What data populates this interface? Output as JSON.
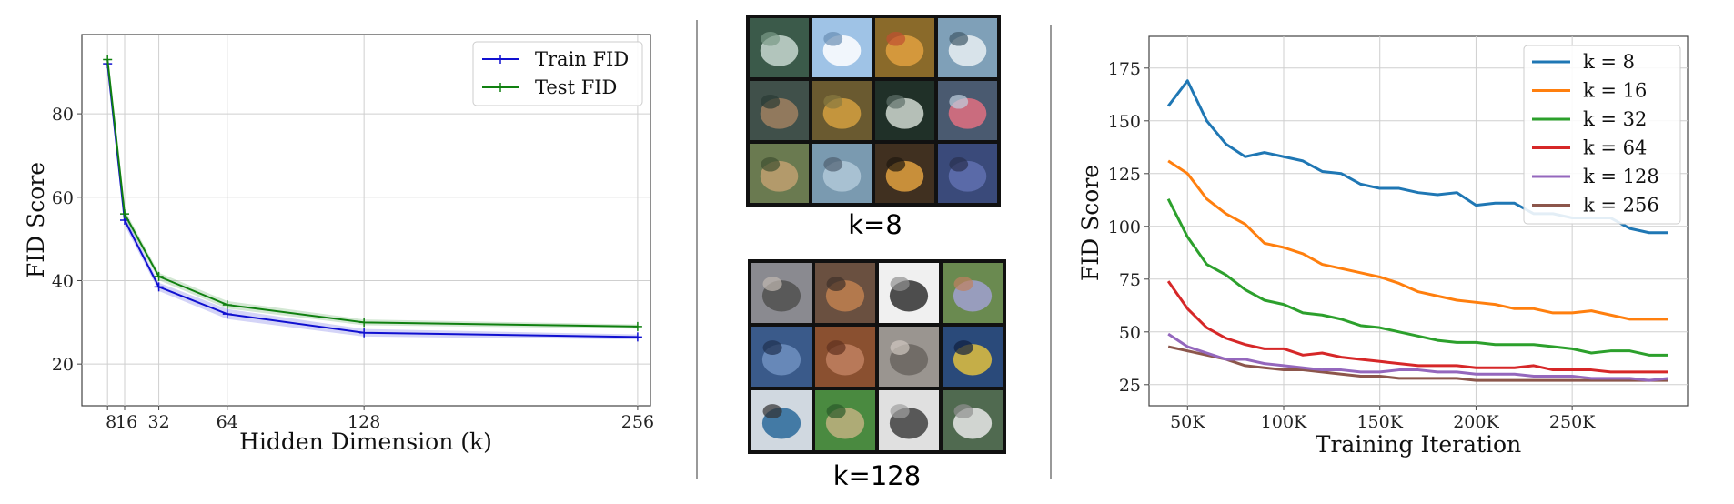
{
  "chart_data": [
    {
      "type": "line",
      "title": "",
      "xlabel": "Hidden Dimension (k)",
      "ylabel": "FID Score",
      "x": [
        8,
        16,
        32,
        64,
        128,
        256
      ],
      "xticks": [
        8,
        16,
        32,
        64,
        128,
        256
      ],
      "yticks": [
        20,
        40,
        60,
        80
      ],
      "xlim": [
        -4,
        262
      ],
      "ylim": [
        10,
        99
      ],
      "grid": true,
      "legend_position": "top-right",
      "colors": {
        "Train FID": "#1010d0",
        "Test FID": "#108010"
      },
      "series": [
        {
          "name": "Train FID",
          "values": [
            92,
            54.5,
            38.5,
            32,
            27.5,
            26.5
          ],
          "band": [
            1.5,
            1.2,
            1.0,
            1.2,
            0.9,
            0.6
          ]
        },
        {
          "name": "Test FID",
          "values": [
            93,
            56,
            41,
            34.2,
            30,
            29
          ],
          "band": [
            1.2,
            1.0,
            0.9,
            0.9,
            0.7,
            0.5
          ]
        }
      ]
    },
    {
      "type": "line",
      "title": "",
      "xlabel": "Training Iteration",
      "ylabel": "FID Score",
      "x": [
        40000,
        50000,
        60000,
        70000,
        80000,
        90000,
        100000,
        110000,
        120000,
        130000,
        140000,
        150000,
        160000,
        170000,
        180000,
        190000,
        200000,
        210000,
        220000,
        230000,
        240000,
        250000,
        260000,
        270000,
        280000,
        290000,
        300000
      ],
      "xticks": [
        "50K",
        "100K",
        "150K",
        "200K",
        "250K"
      ],
      "xtick_values": [
        50000,
        100000,
        150000,
        200000,
        250000
      ],
      "yticks": [
        25,
        50,
        75,
        100,
        125,
        150,
        175
      ],
      "xlim": [
        30000,
        310000
      ],
      "ylim": [
        15,
        190
      ],
      "grid": true,
      "legend_position": "top-right",
      "series": [
        {
          "name": "k = 8",
          "color": "#1f77b4",
          "values": [
            157,
            169,
            150,
            139,
            133,
            135,
            133,
            131,
            126,
            125,
            120,
            118,
            118,
            116,
            115,
            116,
            110,
            111,
            111,
            106,
            106,
            104,
            104,
            104,
            99,
            97,
            97
          ]
        },
        {
          "name": "k = 16",
          "color": "#ff7f0e",
          "values": [
            131,
            125,
            113,
            106,
            101,
            92,
            90,
            87,
            82,
            80,
            78,
            76,
            73,
            69,
            67,
            65,
            64,
            63,
            61,
            61,
            59,
            59,
            60,
            58,
            56,
            56,
            56
          ]
        },
        {
          "name": "k = 32",
          "color": "#2ca02c",
          "values": [
            113,
            95,
            82,
            77,
            70,
            65,
            63,
            59,
            58,
            56,
            53,
            52,
            50,
            48,
            46,
            45,
            45,
            44,
            44,
            44,
            43,
            42,
            40,
            41,
            41,
            39,
            39
          ]
        },
        {
          "name": "k = 64",
          "color": "#d62728",
          "values": [
            74,
            61,
            52,
            47,
            44,
            42,
            42,
            39,
            40,
            38,
            37,
            36,
            35,
            34,
            34,
            34,
            33,
            33,
            33,
            34,
            32,
            32,
            32,
            31,
            31,
            31,
            31
          ]
        },
        {
          "name": "k = 128",
          "color": "#9467bd",
          "values": [
            49,
            43,
            40,
            37,
            37,
            35,
            34,
            33,
            32,
            32,
            31,
            31,
            32,
            32,
            31,
            31,
            30,
            30,
            30,
            29,
            29,
            29,
            28,
            28,
            28,
            27,
            28
          ]
        },
        {
          "name": "k = 256",
          "color": "#8c564b",
          "values": [
            43,
            41,
            39,
            37,
            34,
            33,
            32,
            32,
            31,
            30,
            29,
            29,
            28,
            28,
            28,
            28,
            27,
            27,
            27,
            27,
            27,
            27,
            27,
            27,
            27,
            27,
            27
          ]
        }
      ]
    }
  ],
  "panels": {
    "top_caption": "k=8",
    "bottom_caption": "k=128"
  }
}
